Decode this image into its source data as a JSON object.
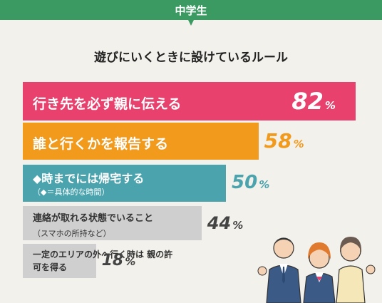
{
  "header": {
    "tab_label": "中学生"
  },
  "chart_data": {
    "type": "bar",
    "title": "遊びにいくときに設けているルール",
    "unit": "%",
    "categories": [
      "行き先を必ず親に伝える",
      "誰と行くかを報告する",
      "◆時までには帰宅する",
      "連絡が取れる状態でいること",
      "一定のエリアの外へ行く時は 親の許可を得る"
    ],
    "notes": [
      "",
      "",
      "（◆＝具体的な時間）",
      "（スマホの所持など）",
      ""
    ],
    "values": [
      82,
      58,
      50,
      44,
      18
    ],
    "colors": [
      "#e8416d",
      "#f29a1c",
      "#4aa3ad",
      "#cfcfcf",
      "#cfcfcf"
    ]
  }
}
